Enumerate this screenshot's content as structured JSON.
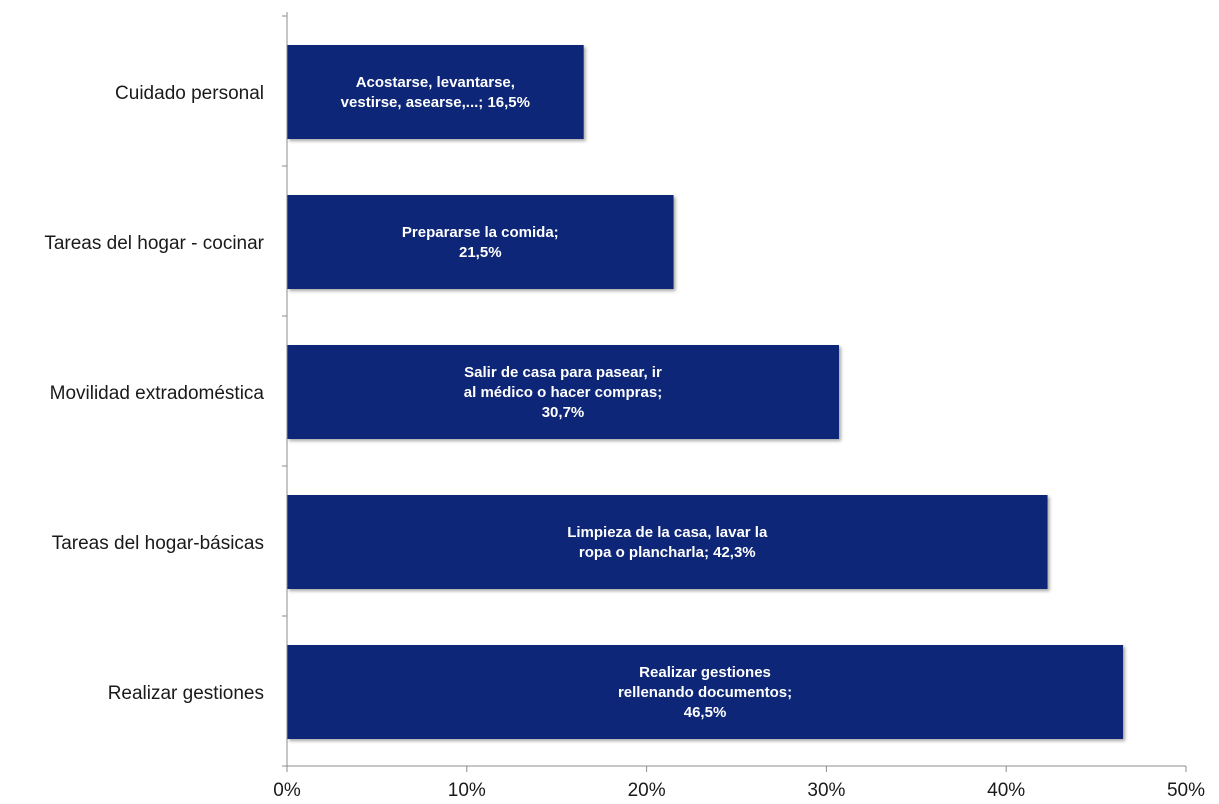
{
  "chart_data": {
    "type": "bar",
    "orientation": "horizontal",
    "title": "",
    "xlabel": "",
    "ylabel": "",
    "xlim": [
      0,
      50
    ],
    "x_ticks": [
      "0%",
      "10%",
      "20%",
      "30%",
      "40%",
      "50%"
    ],
    "grid": false,
    "legend": "none",
    "bar_color": "#0c2577",
    "categories": [
      "Cuidado personal",
      "Tareas del hogar - cocinar",
      "Movilidad extradoméstica",
      "Tareas del hogar-básicas",
      "Realizar gestiones"
    ],
    "values": [
      16.5,
      21.5,
      30.7,
      42.3,
      46.5
    ],
    "data_labels": [
      [
        "Acostarse, levantarse,",
        "vestirse, asearse,...; 16,5%"
      ],
      [
        "Prepararse la comida;",
        "21,5%"
      ],
      [
        "Salir de casa para pasear, ir",
        "al médico o hacer compras;",
        "30,7%"
      ],
      [
        "Limpieza de la casa, lavar la",
        "ropa o plancharla; 42,3%"
      ],
      [
        "Realizar gestiones",
        "rellenando documentos;",
        "46,5%"
      ]
    ]
  }
}
